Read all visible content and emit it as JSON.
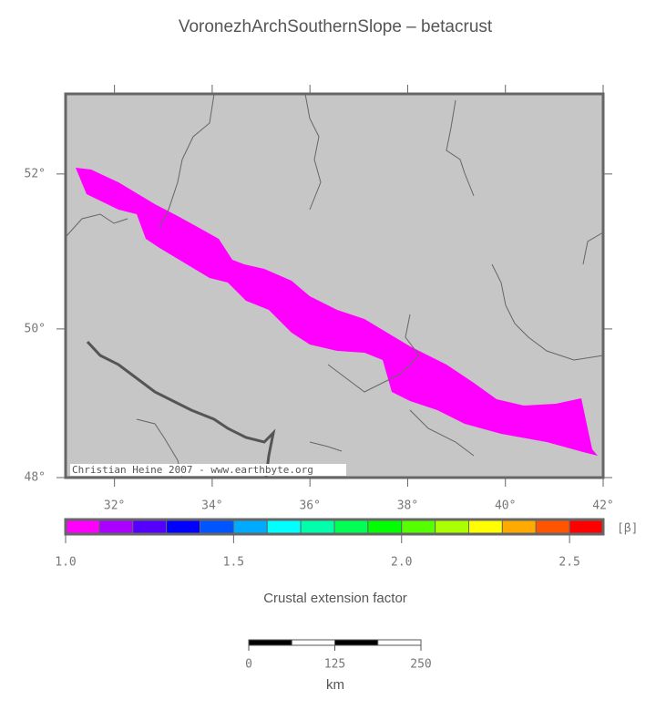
{
  "chart_data": {
    "type": "map",
    "title": "VoronezhArchSouthernSlope – betacrust",
    "credit": "Christian Heine 2007 - www.earthbyte.org",
    "xlim": [
      31,
      42
    ],
    "ylim": [
      48,
      53
    ],
    "xticks": [
      {
        "value": 32,
        "label": "32°"
      },
      {
        "value": 34,
        "label": "34°"
      },
      {
        "value": 36,
        "label": "36°"
      },
      {
        "value": 38,
        "label": "38°"
      },
      {
        "value": 40,
        "label": "40°"
      },
      {
        "value": 42,
        "label": "42°"
      }
    ],
    "yticks": [
      {
        "value": 48,
        "label": "48°"
      },
      {
        "value": 50,
        "label": "50°"
      },
      {
        "value": 52,
        "label": "52°"
      }
    ],
    "colorbar": {
      "label": "Crustal extension factor",
      "unit": "[β]",
      "lim": [
        1.0,
        2.6
      ],
      "ticks": [
        {
          "value": 1.0,
          "label": "1.0"
        },
        {
          "value": 1.5,
          "label": "1.5"
        },
        {
          "value": 2.0,
          "label": "2.0"
        },
        {
          "value": 2.5,
          "label": "2.5"
        }
      ],
      "colors": [
        "#ff00ff",
        "#aa00ff",
        "#5500ff",
        "#0000ff",
        "#0055ff",
        "#00aaff",
        "#00ffff",
        "#00ffaa",
        "#00ff55",
        "#00ff00",
        "#55ff00",
        "#aaff00",
        "#ffff00",
        "#ffaa00",
        "#ff5500",
        "#ff0000"
      ]
    },
    "scalebar": {
      "unit": "km",
      "lim": [
        0,
        250
      ],
      "ticks": [
        0,
        125,
        250
      ]
    }
  }
}
